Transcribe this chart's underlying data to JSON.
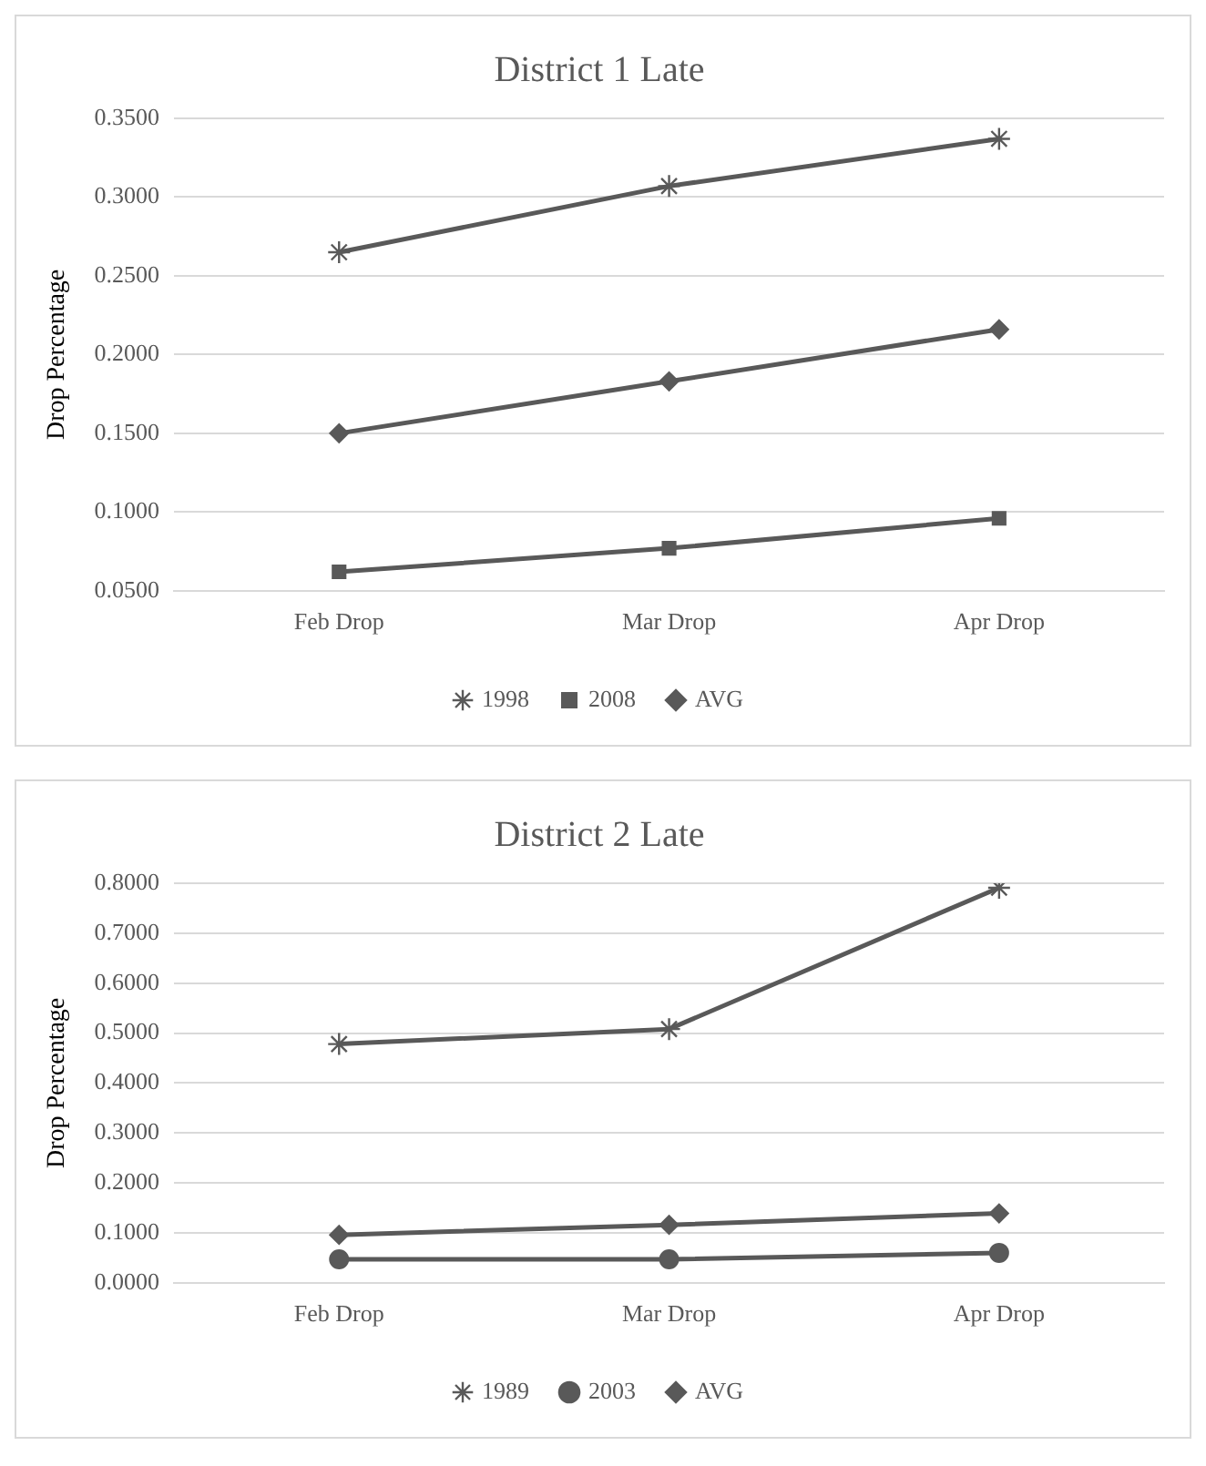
{
  "chart_data": [
    {
      "type": "line",
      "title": "District 1 Late",
      "ylabel": "Drop Percentage",
      "categories": [
        "Feb Drop",
        "Mar Drop",
        "Apr Drop"
      ],
      "series": [
        {
          "name": "1998",
          "color": "#595959",
          "marker": "cross",
          "values": [
            0.265,
            0.307,
            0.337
          ]
        },
        {
          "name": "2008",
          "color": "#595959",
          "marker": "square",
          "values": [
            0.062,
            0.077,
            0.096
          ]
        },
        {
          "name": "AVG",
          "color": "#595959",
          "marker": "diamond",
          "values": [
            0.15,
            0.183,
            0.216
          ]
        }
      ],
      "ylim": [
        0.05,
        0.35
      ],
      "yticks": [
        {
          "value": 0.05,
          "label": "0.0500"
        },
        {
          "value": 0.1,
          "label": "0.1000"
        },
        {
          "value": 0.15,
          "label": "0.1500"
        },
        {
          "value": 0.2,
          "label": "0.2000"
        },
        {
          "value": 0.25,
          "label": "0.2500"
        },
        {
          "value": 0.3,
          "label": "0.3000"
        },
        {
          "value": 0.35,
          "label": "0.3500"
        }
      ],
      "grid": "y",
      "legend": "bottom",
      "line_style": "solid"
    },
    {
      "type": "line",
      "title": "District 2 Late",
      "ylabel": "Drop Percentage",
      "categories": [
        "Feb Drop",
        "Mar Drop",
        "Apr Drop"
      ],
      "series": [
        {
          "name": "1989",
          "color": "#595959",
          "marker": "cross",
          "values": [
            0.478,
            0.508,
            0.791
          ]
        },
        {
          "name": "2003",
          "color": "#595959",
          "marker": "circle",
          "values": [
            0.047,
            0.047,
            0.06
          ]
        },
        {
          "name": "AVG",
          "color": "#595959",
          "marker": "diamond",
          "values": [
            0.096,
            0.116,
            0.139
          ]
        }
      ],
      "ylim": [
        0,
        0.8
      ],
      "yticks": [
        {
          "value": 0,
          "label": "0.0000"
        },
        {
          "value": 0.1,
          "label": "0.1000"
        },
        {
          "value": 0.2,
          "label": "0.2000"
        },
        {
          "value": 0.3,
          "label": "0.3000"
        },
        {
          "value": 0.4,
          "label": "0.4000"
        },
        {
          "value": 0.5,
          "label": "0.5000"
        },
        {
          "value": 0.6,
          "label": "0.6000"
        },
        {
          "value": 0.7,
          "label": "0.7000"
        },
        {
          "value": 0.8,
          "label": "0.8000"
        }
      ],
      "grid": "y",
      "legend": "bottom",
      "line_style": "solid"
    }
  ]
}
